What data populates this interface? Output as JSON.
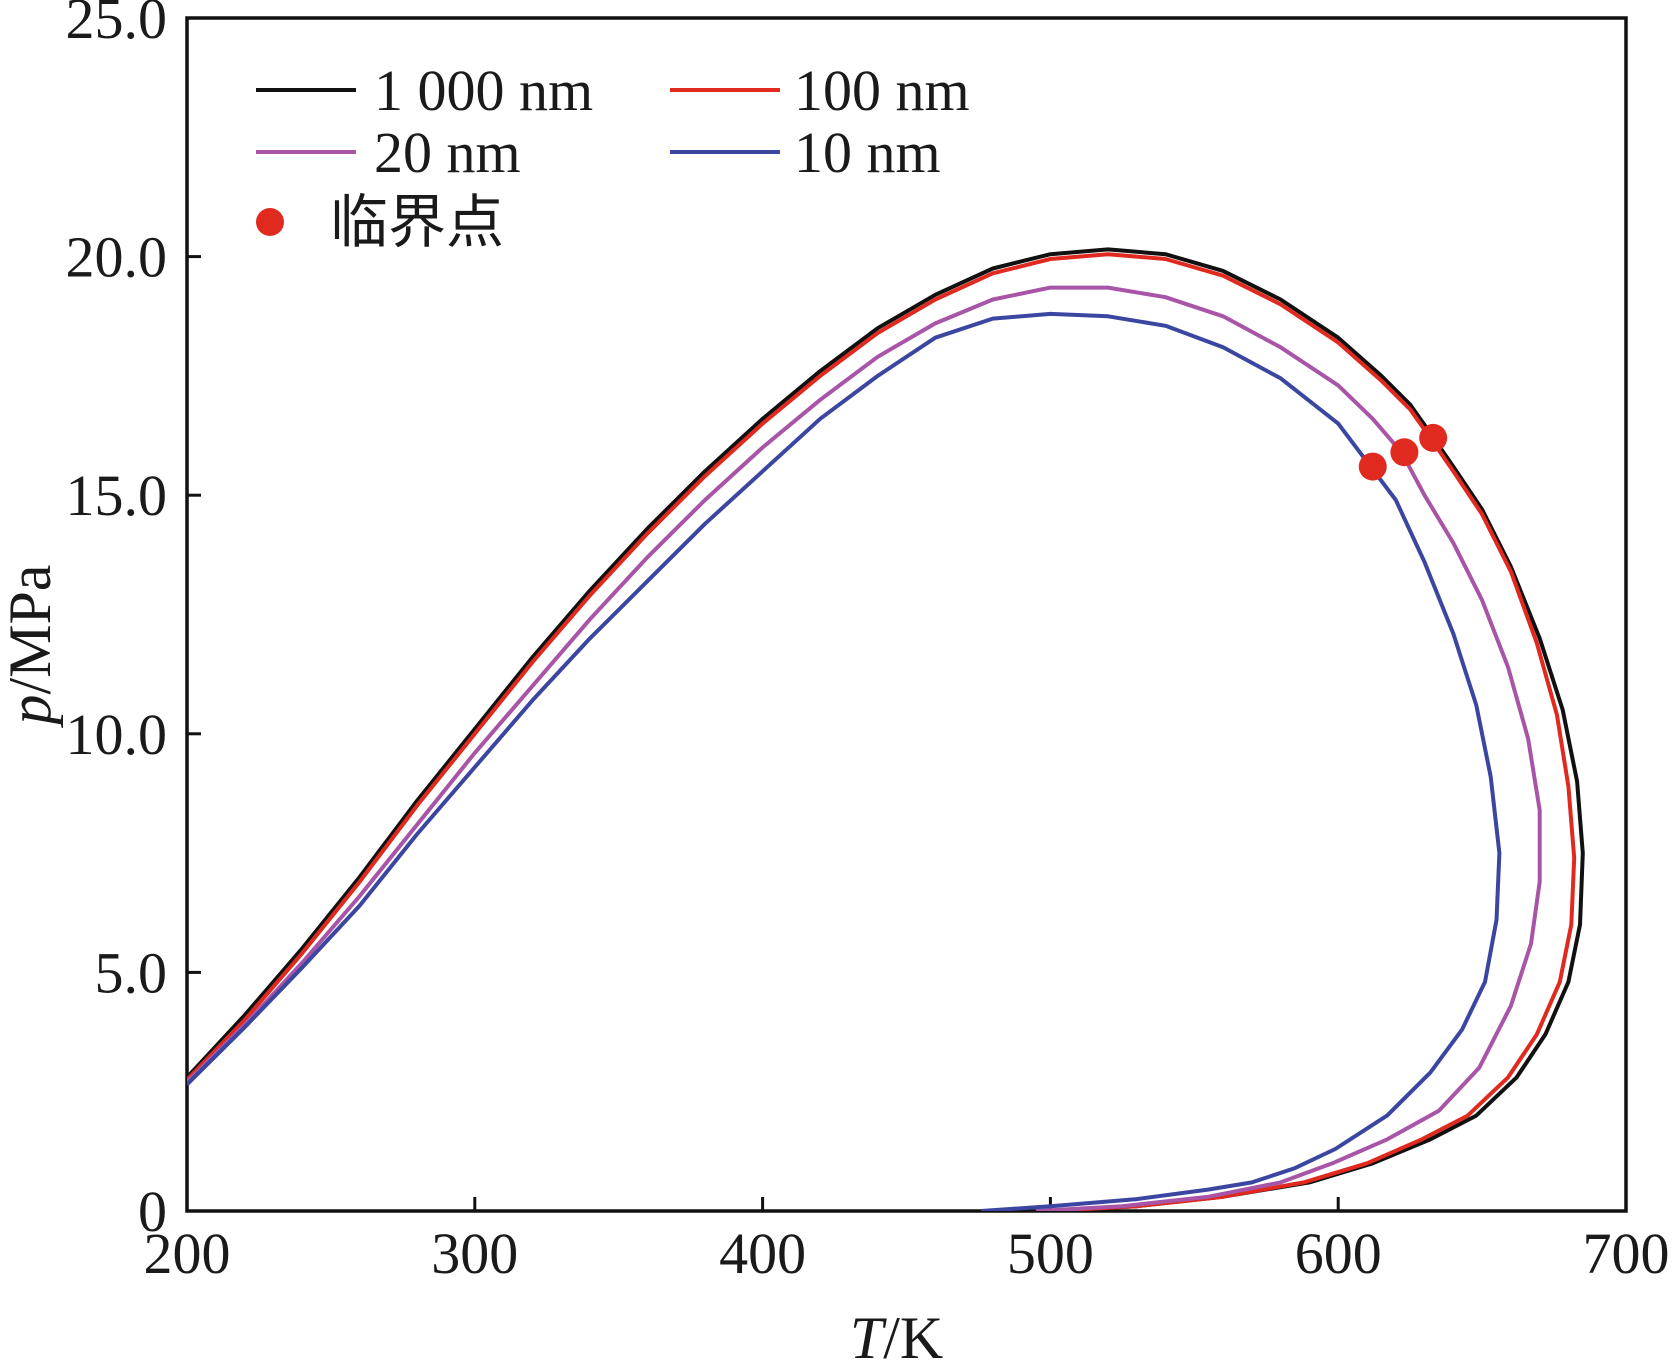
{
  "chart_data": {
    "type": "line",
    "xlabel": {
      "var": "T",
      "unit": "/K"
    },
    "ylabel": {
      "var": "p",
      "unit": "/MPa"
    },
    "xlim": [
      200,
      700
    ],
    "ylim": [
      0,
      25
    ],
    "x_ticks": [
      "200",
      "300",
      "400",
      "500",
      "600",
      "700"
    ],
    "y_ticks": [
      "0",
      "5.0",
      "10.0",
      "15.0",
      "20.0",
      "25.0"
    ],
    "grid": false,
    "legend_position": "top-left",
    "series": [
      {
        "name": "1 000 nm",
        "color": "#111111",
        "points": [
          [
            200,
            2.8
          ],
          [
            220,
            4.1
          ],
          [
            240,
            5.5
          ],
          [
            260,
            7.0
          ],
          [
            280,
            8.6
          ],
          [
            300,
            10.1
          ],
          [
            320,
            11.6
          ],
          [
            340,
            13.0
          ],
          [
            360,
            14.3
          ],
          [
            380,
            15.5
          ],
          [
            400,
            16.6
          ],
          [
            420,
            17.6
          ],
          [
            440,
            18.5
          ],
          [
            460,
            19.2
          ],
          [
            480,
            19.75
          ],
          [
            500,
            20.05
          ],
          [
            520,
            20.15
          ],
          [
            540,
            20.05
          ],
          [
            560,
            19.7
          ],
          [
            580,
            19.1
          ],
          [
            600,
            18.3
          ],
          [
            615,
            17.5
          ],
          [
            625,
            16.9
          ],
          [
            632,
            16.3
          ],
          [
            640,
            15.6
          ],
          [
            650,
            14.7
          ],
          [
            660,
            13.5
          ],
          [
            670,
            12.0
          ],
          [
            678,
            10.5
          ],
          [
            683,
            9.0
          ],
          [
            685,
            7.5
          ],
          [
            684,
            6.0
          ],
          [
            680,
            4.8
          ],
          [
            672,
            3.7
          ],
          [
            662,
            2.8
          ],
          [
            648,
            2.0
          ],
          [
            632,
            1.5
          ],
          [
            612,
            1.0
          ],
          [
            590,
            0.6
          ],
          [
            560,
            0.3
          ],
          [
            530,
            0.1
          ],
          [
            500,
            0.0
          ]
        ]
      },
      {
        "name": "100 nm",
        "color": "#e02a20",
        "points": [
          [
            200,
            2.75
          ],
          [
            220,
            4.0
          ],
          [
            240,
            5.4
          ],
          [
            260,
            6.9
          ],
          [
            280,
            8.5
          ],
          [
            300,
            10.0
          ],
          [
            320,
            11.5
          ],
          [
            340,
            12.9
          ],
          [
            360,
            14.2
          ],
          [
            380,
            15.4
          ],
          [
            400,
            16.5
          ],
          [
            420,
            17.5
          ],
          [
            440,
            18.4
          ],
          [
            460,
            19.1
          ],
          [
            480,
            19.65
          ],
          [
            500,
            19.95
          ],
          [
            520,
            20.05
          ],
          [
            540,
            19.95
          ],
          [
            560,
            19.6
          ],
          [
            580,
            19.0
          ],
          [
            600,
            18.2
          ],
          [
            615,
            17.4
          ],
          [
            625,
            16.8
          ],
          [
            632,
            16.2
          ],
          [
            640,
            15.5
          ],
          [
            650,
            14.6
          ],
          [
            660,
            13.4
          ],
          [
            669,
            11.9
          ],
          [
            676,
            10.4
          ],
          [
            680,
            8.9
          ],
          [
            682,
            7.4
          ],
          [
            681,
            6.0
          ],
          [
            677,
            4.8
          ],
          [
            669,
            3.7
          ],
          [
            659,
            2.8
          ],
          [
            645,
            2.0
          ],
          [
            629,
            1.5
          ],
          [
            610,
            1.0
          ],
          [
            588,
            0.6
          ],
          [
            560,
            0.3
          ],
          [
            530,
            0.1
          ],
          [
            500,
            0.0
          ]
        ]
      },
      {
        "name": "20 nm",
        "color": "#a855a8",
        "points": [
          [
            200,
            2.7
          ],
          [
            220,
            3.9
          ],
          [
            240,
            5.2
          ],
          [
            260,
            6.6
          ],
          [
            280,
            8.1
          ],
          [
            300,
            9.6
          ],
          [
            320,
            11.0
          ],
          [
            340,
            12.4
          ],
          [
            360,
            13.7
          ],
          [
            380,
            14.9
          ],
          [
            400,
            16.0
          ],
          [
            420,
            17.0
          ],
          [
            440,
            17.9
          ],
          [
            460,
            18.6
          ],
          [
            480,
            19.1
          ],
          [
            500,
            19.35
          ],
          [
            520,
            19.35
          ],
          [
            540,
            19.15
          ],
          [
            560,
            18.75
          ],
          [
            580,
            18.1
          ],
          [
            600,
            17.3
          ],
          [
            612,
            16.6
          ],
          [
            622,
            15.9
          ],
          [
            630,
            15.0
          ],
          [
            640,
            14.0
          ],
          [
            650,
            12.8
          ],
          [
            659,
            11.4
          ],
          [
            666,
            9.9
          ],
          [
            670,
            8.4
          ],
          [
            670,
            6.9
          ],
          [
            667,
            5.6
          ],
          [
            660,
            4.3
          ],
          [
            649,
            3.0
          ],
          [
            635,
            2.1
          ],
          [
            617,
            1.5
          ],
          [
            598,
            1.0
          ],
          [
            580,
            0.6
          ],
          [
            555,
            0.3
          ],
          [
            525,
            0.1
          ],
          [
            495,
            0.0
          ]
        ]
      },
      {
        "name": "10  nm",
        "color": "#3a46a0",
        "points": [
          [
            200,
            2.65
          ],
          [
            220,
            3.85
          ],
          [
            240,
            5.1
          ],
          [
            260,
            6.4
          ],
          [
            280,
            7.9
          ],
          [
            300,
            9.3
          ],
          [
            320,
            10.7
          ],
          [
            340,
            12.0
          ],
          [
            360,
            13.2
          ],
          [
            380,
            14.4
          ],
          [
            400,
            15.5
          ],
          [
            420,
            16.6
          ],
          [
            440,
            17.5
          ],
          [
            460,
            18.3
          ],
          [
            480,
            18.7
          ],
          [
            500,
            18.8
          ],
          [
            520,
            18.75
          ],
          [
            540,
            18.55
          ],
          [
            560,
            18.1
          ],
          [
            580,
            17.45
          ],
          [
            600,
            16.5
          ],
          [
            610,
            15.7
          ],
          [
            620,
            14.9
          ],
          [
            630,
            13.6
          ],
          [
            640,
            12.1
          ],
          [
            648,
            10.6
          ],
          [
            653,
            9.1
          ],
          [
            656,
            7.5
          ],
          [
            655,
            6.1
          ],
          [
            651,
            4.8
          ],
          [
            643,
            3.8
          ],
          [
            632,
            2.9
          ],
          [
            617,
            2.0
          ],
          [
            599,
            1.3
          ],
          [
            585,
            0.9
          ],
          [
            570,
            0.6
          ],
          [
            555,
            0.45
          ],
          [
            530,
            0.25
          ],
          [
            500,
            0.1
          ],
          [
            476,
            0.0
          ]
        ]
      }
    ],
    "critical_points": {
      "name": "临界点",
      "color": "#e02a20",
      "points": [
        [
          612,
          15.6
        ],
        [
          623,
          15.9
        ],
        [
          633,
          16.2
        ]
      ]
    }
  }
}
